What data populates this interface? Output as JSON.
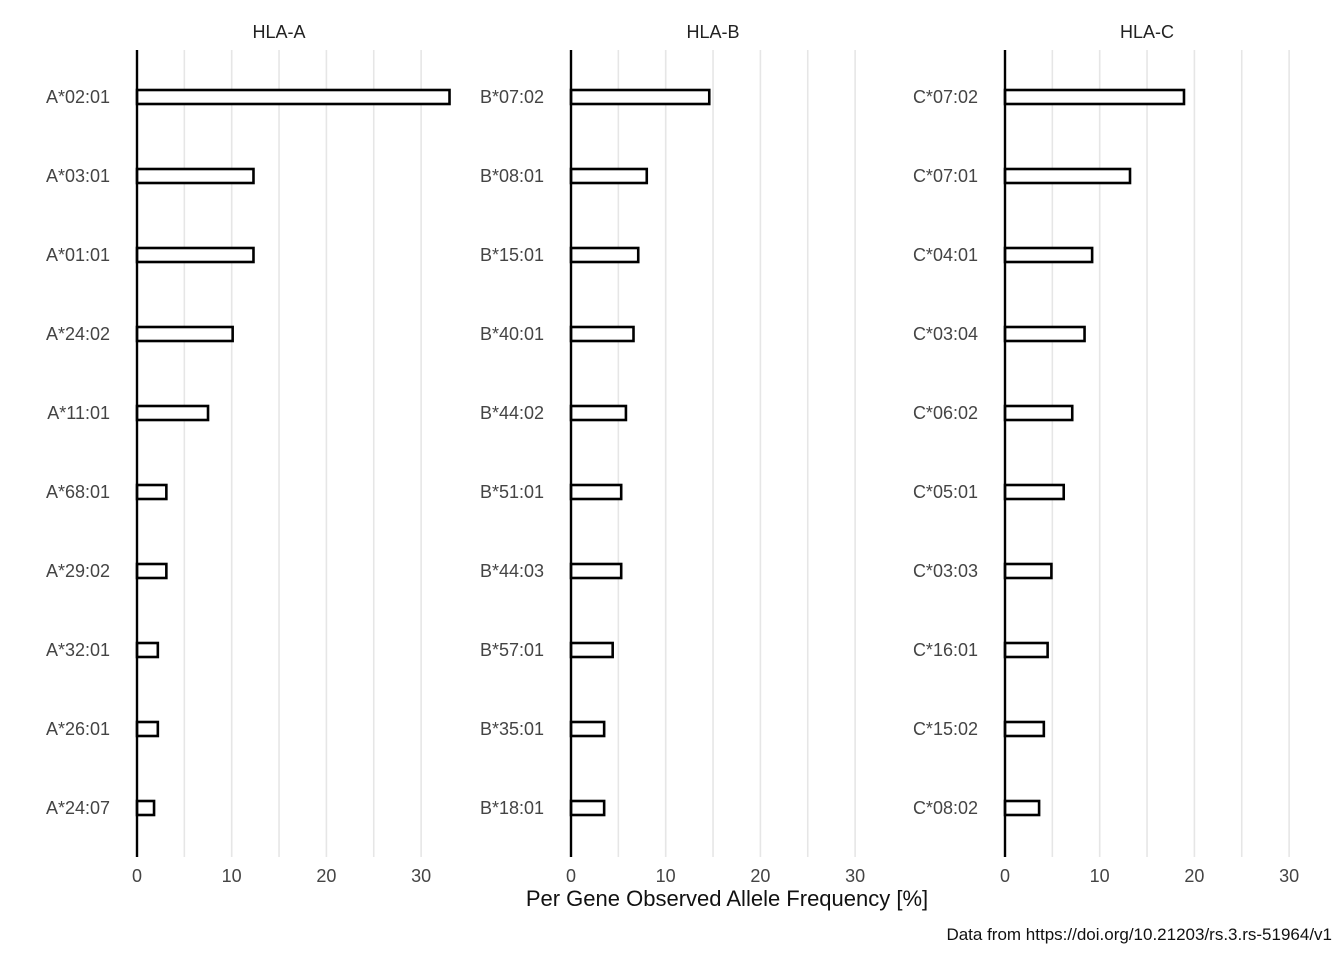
{
  "chart_data": {
    "type": "bar",
    "orientation": "horizontal",
    "xlabel": "Per Gene Observed Allele Frequency [%]",
    "caption": "Data from https://doi.org/10.21203/rs.3.rs-51964/v1",
    "xlim": [
      0,
      30
    ],
    "xticks": [
      0,
      10,
      20,
      30
    ],
    "grid": true,
    "bar_fill": "#ffffff",
    "bar_stroke": "#000000",
    "panels": [
      {
        "title": "HLA-A",
        "categories": [
          "A*02:01",
          "A*03:01",
          "A*01:01",
          "A*24:02",
          "A*11:01",
          "A*68:01",
          "A*29:02",
          "A*32:01",
          "A*26:01",
          "A*24:07"
        ],
        "values": [
          33.0,
          12.3,
          12.3,
          10.1,
          7.5,
          3.1,
          3.1,
          2.2,
          2.2,
          1.8
        ]
      },
      {
        "title": "HLA-B",
        "categories": [
          "B*07:02",
          "B*08:01",
          "B*15:01",
          "B*40:01",
          "B*44:02",
          "B*51:01",
          "B*44:03",
          "B*57:01",
          "B*35:01",
          "B*18:01"
        ],
        "values": [
          14.6,
          8.0,
          7.1,
          6.6,
          5.8,
          5.3,
          5.3,
          4.4,
          3.5,
          3.5
        ]
      },
      {
        "title": "HLA-C",
        "categories": [
          "C*07:02",
          "C*07:01",
          "C*04:01",
          "C*03:04",
          "C*06:02",
          "C*05:01",
          "C*03:03",
          "C*16:01",
          "C*15:02",
          "C*08:02"
        ],
        "values": [
          18.9,
          13.2,
          9.2,
          8.4,
          7.1,
          6.2,
          4.9,
          4.5,
          4.1,
          3.6
        ]
      }
    ]
  }
}
